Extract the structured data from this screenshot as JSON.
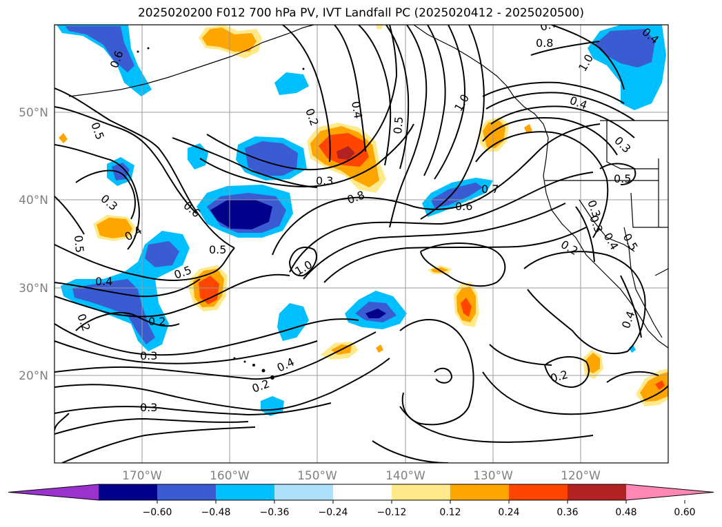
{
  "title": "2025020200 F012 700 hPa PV, IVT Landfall PC (2025020412 - 2025020500)",
  "colors": {
    "frame": "#000000",
    "grid": "#9a9a9a",
    "contour": "#000000",
    "coast": "#000000"
  },
  "map": {
    "lon_range": [
      -180,
      -110
    ],
    "lat_range": [
      10,
      60
    ],
    "lon_ticks": [
      "170°W",
      "160°W",
      "150°W",
      "140°W",
      "130°W",
      "120°W"
    ],
    "lat_ticks": [
      "50°N",
      "40°N",
      "30°N",
      "20°N"
    ],
    "grid": true
  },
  "colorbar": {
    "tick_labels": [
      "−0.60",
      "−0.48",
      "−0.36",
      "−0.24",
      "−0.12",
      "0.12",
      "0.24",
      "0.36",
      "0.48",
      "0.60"
    ],
    "bin_colors": [
      "#9a32cd",
      "#00008b",
      "#3b5bd3",
      "#00bfff",
      "#afe1fa",
      "#ffffff",
      "#ffe98a",
      "#ffa500",
      "#ff4500",
      "#b22222",
      "#ff87b4"
    ],
    "extend": "both"
  },
  "contour_labels": [
    {
      "text": "0.6"
    },
    {
      "text": "0.5"
    },
    {
      "text": "0.3"
    },
    {
      "text": "0.5"
    },
    {
      "text": "0.4"
    },
    {
      "text": "0.4"
    },
    {
      "text": "0.2"
    },
    {
      "text": "0.5"
    },
    {
      "text": "0.2"
    },
    {
      "text": "0.3"
    },
    {
      "text": "0.6"
    },
    {
      "text": "0.5"
    },
    {
      "text": "1.0"
    },
    {
      "text": "0.3"
    },
    {
      "text": "0.8"
    },
    {
      "text": "0.2"
    },
    {
      "text": "0.4"
    },
    {
      "text": "0.5"
    },
    {
      "text": "1.0"
    },
    {
      "text": "0.7"
    },
    {
      "text": "0.6"
    },
    {
      "text": "0.4"
    },
    {
      "text": "0.2"
    },
    {
      "text": "0.3"
    },
    {
      "text": "0.7"
    },
    {
      "text": "0.8"
    },
    {
      "text": "1.0"
    },
    {
      "text": "0.4"
    },
    {
      "text": "0.3"
    },
    {
      "text": "0.5"
    },
    {
      "text": "0.3"
    },
    {
      "text": "0.4"
    },
    {
      "text": "0.2"
    },
    {
      "text": "0.5"
    },
    {
      "text": "0.4"
    },
    {
      "text": "0.2"
    },
    {
      "text": "0.4"
    },
    {
      "text": "0.3"
    }
  ],
  "anomaly_blobs": [
    {
      "sign": "negative",
      "level": "-0.36",
      "name": "blob-gulf-alaska-west"
    },
    {
      "sign": "negative",
      "level": "-0.48",
      "name": "blob-central-pacific-40n"
    },
    {
      "sign": "negative",
      "level": "-0.36",
      "name": "blob-subtropical-west"
    },
    {
      "sign": "negative",
      "level": "-0.36",
      "name": "blob-north-pacific-45n"
    },
    {
      "sign": "negative",
      "level": "-0.36",
      "name": "blob-east-pacific-40n"
    },
    {
      "sign": "negative",
      "level": "-0.48",
      "name": "blob-subtropical-27n"
    },
    {
      "sign": "negative",
      "level": "-0.36",
      "name": "blob-canada-northeast"
    },
    {
      "sign": "positive",
      "level": "0.48",
      "name": "blob-north-pacific-45n-positive"
    },
    {
      "sign": "positive",
      "level": "0.36",
      "name": "blob-30n-160w"
    },
    {
      "sign": "positive",
      "level": "0.36",
      "name": "blob-37n-172w"
    },
    {
      "sign": "positive",
      "level": "0.36",
      "name": "blob-alaska-peninsula"
    },
    {
      "sign": "positive",
      "level": "0.36",
      "name": "blob-bc-coast"
    },
    {
      "sign": "positive",
      "level": "0.36",
      "name": "blob-28n-133w"
    },
    {
      "sign": "positive",
      "level": "0.48",
      "name": "blob-mexico-coast"
    },
    {
      "sign": "positive",
      "level": "0.24",
      "name": "blob-21n-118w"
    },
    {
      "sign": "positive",
      "level": "0.24",
      "name": "blob-hawaii-east"
    }
  ]
}
